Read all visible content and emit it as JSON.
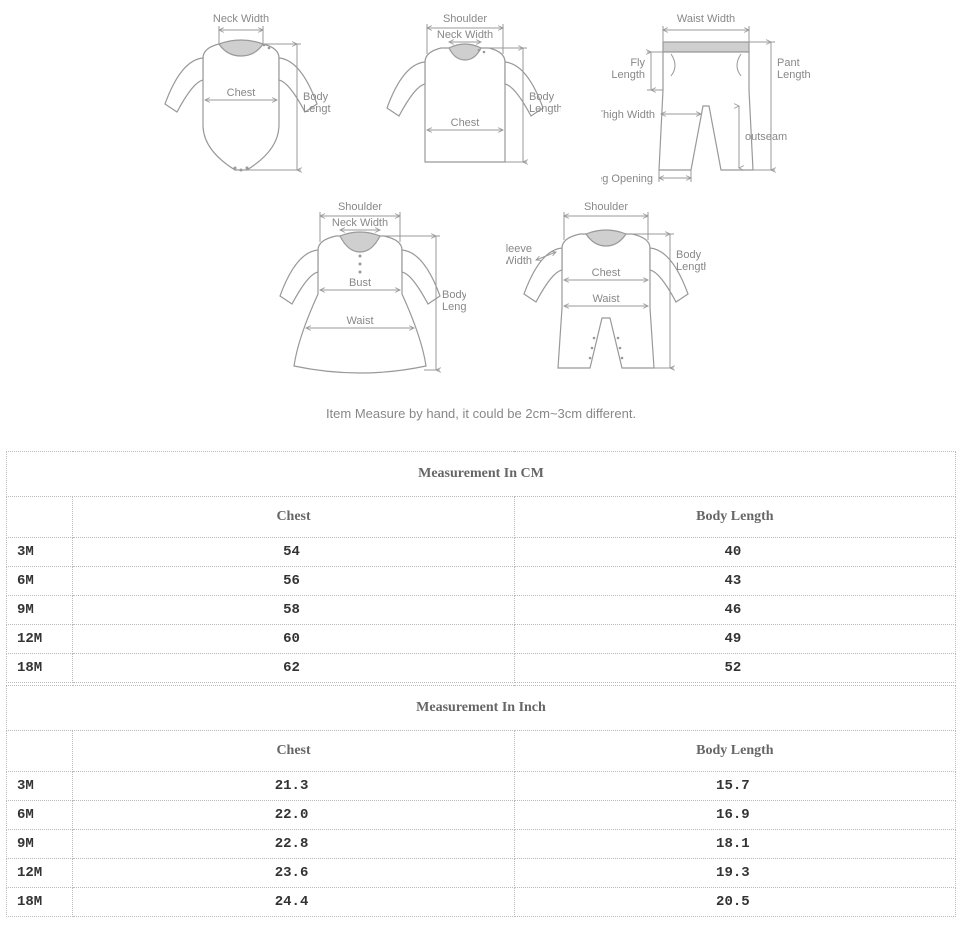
{
  "note": "Item Measure by hand, it could be 2cm~3cm different.",
  "diagrams": {
    "row1": [
      {
        "labels": {
          "neck": "Neck Width",
          "chest": "Chest",
          "bodylen": "Body\nLength"
        }
      },
      {
        "labels": {
          "shoulder": "Shoulder",
          "neck": "Neck Width",
          "chest": "Chest",
          "bodylen": "Body\nLength"
        }
      },
      {
        "labels": {
          "waist": "Waist Width",
          "fly": "Fly\nLength",
          "pantlen": "Pant\nLength",
          "thigh": "Thigh Width",
          "outseam": "outseam",
          "legopen": "Leg Opening"
        }
      }
    ],
    "row2": [
      {
        "labels": {
          "shoulder": "Shoulder",
          "neck": "Neck Width",
          "bust": "Bust",
          "waist": "Waist",
          "bodylen": "Body\nLength"
        }
      },
      {
        "labels": {
          "shoulder": "Shoulder",
          "sleevew": "Sleeve\nWidth",
          "chest": "Chest",
          "waist": "Waist",
          "bodylen": "Body\nLength"
        }
      }
    ]
  },
  "tables": {
    "cm": {
      "title": "Measurement In CM",
      "columns": [
        "",
        "Chest",
        "Body Length"
      ],
      "rows": [
        [
          "3M",
          "54",
          "40"
        ],
        [
          "6M",
          "56",
          "43"
        ],
        [
          "9M",
          "58",
          "46"
        ],
        [
          "12M",
          "60",
          "49"
        ],
        [
          "18M",
          "62",
          "52"
        ]
      ]
    },
    "inch": {
      "title": "Measurement In Inch",
      "columns": [
        "",
        "Chest",
        "Body Length"
      ],
      "rows": [
        [
          "3M",
          "21.3",
          "15.7"
        ],
        [
          "6M",
          "22.0",
          "16.9"
        ],
        [
          "9M",
          "22.8",
          "18.1"
        ],
        [
          "12M",
          "23.6",
          "19.3"
        ],
        [
          "18M",
          "24.4",
          "20.5"
        ]
      ]
    }
  },
  "style": {
    "diagram_stroke": "#999999",
    "diagram_label_color": "#888888",
    "table_border": "#bbbbbb",
    "table_title_color": "#666666",
    "table_data_color": "#333333",
    "background": "#ffffff"
  }
}
